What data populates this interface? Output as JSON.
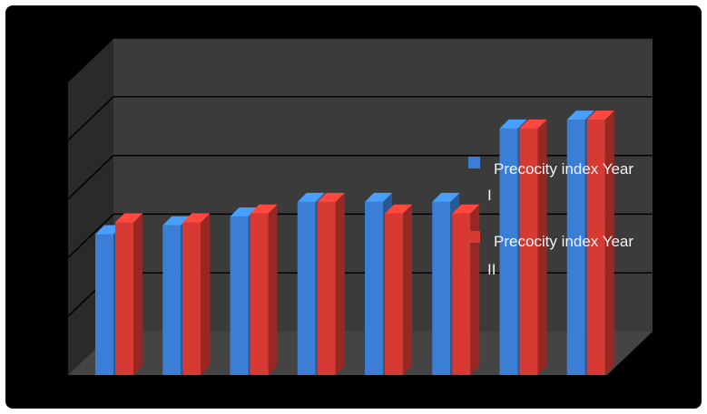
{
  "chart_data": {
    "type": "bar",
    "categories": [
      "",
      "",
      "",
      "",
      "",
      "",
      "",
      ""
    ],
    "series": [
      {
        "name": "Precocity index Year I",
        "color": "#3a7fd5",
        "values": [
          2.4,
          2.55,
          2.7,
          2.95,
          2.95,
          2.95,
          4.2,
          4.35
        ]
      },
      {
        "name": "Precocity index Year II",
        "color": "#d63a32",
        "values": [
          2.6,
          2.6,
          2.75,
          2.95,
          2.75,
          2.75,
          4.2,
          4.35
        ]
      }
    ],
    "ylim": [
      0,
      5
    ],
    "grid": true,
    "style": "3d-clustered-column",
    "legend": {
      "position": "right",
      "lines": [
        [
          "Precocity index Year",
          "I"
        ],
        [
          "Precocity index Year",
          "II"
        ]
      ]
    }
  }
}
